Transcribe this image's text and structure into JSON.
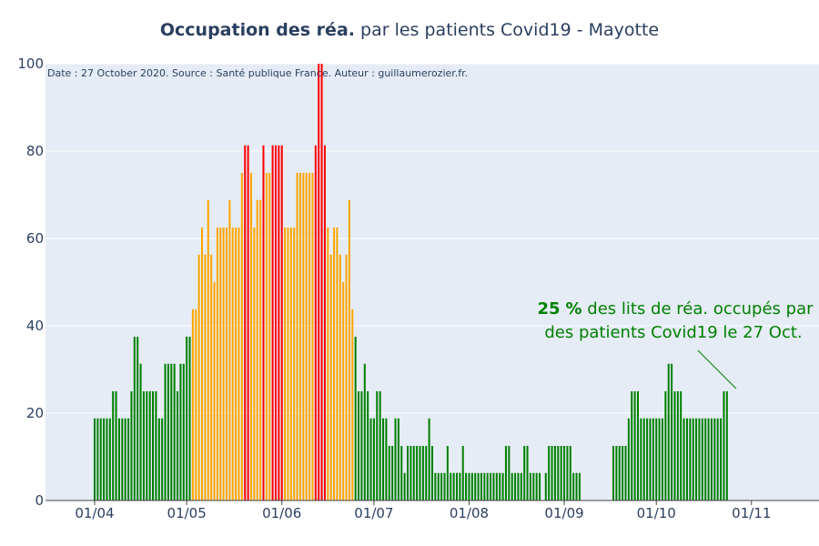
{
  "title": {
    "bold": "Occupation des réa.",
    "rest": " par les patients Covid19 - Mayotte"
  },
  "note": "Date : 27 October 2020. Source : Santé publique France. Auteur : guillaumerozier.fr.",
  "annotation": {
    "value": "25",
    "pct": "%",
    "line1_rest": " des lits de réa. occupés par",
    "line2": "des patients Covid19 le 27 Oct."
  },
  "colors": {
    "green": "#008000",
    "orange": "#FFA500",
    "red": "#FF0000",
    "plot_bg": "#E5ECF6",
    "grid": "#ffffff"
  },
  "chart_data": {
    "type": "bar",
    "x_tick_labels": [
      "01/04",
      "01/05",
      "01/06",
      "01/07",
      "01/08",
      "01/09",
      "01/10",
      "01/11"
    ],
    "x_tick_dates": [
      "2020-04-01",
      "2020-05-01",
      "2020-06-01",
      "2020-07-01",
      "2020-08-01",
      "2020-09-01",
      "2020-10-01",
      "2020-11-01"
    ],
    "x_range": [
      "2020-03-16",
      "2020-11-23"
    ],
    "ylim": [
      0,
      100
    ],
    "y_ticks": [
      0,
      20,
      40,
      60,
      80,
      100
    ],
    "grid": true,
    "thresholds": {
      "orange_at_or_above": 40,
      "red_at_or_above": 80
    },
    "first_date": "2020-04-01",
    "values": [
      18.8,
      18.8,
      18.8,
      18.8,
      18.8,
      18.8,
      25,
      25,
      18.8,
      18.8,
      18.8,
      18.8,
      25,
      37.5,
      37.5,
      31.3,
      25,
      25,
      25,
      25,
      25,
      18.8,
      18.8,
      31.3,
      31.3,
      31.3,
      31.3,
      25,
      31.3,
      31.3,
      37.5,
      37.5,
      43.8,
      43.8,
      56.3,
      62.5,
      56.3,
      68.8,
      56.3,
      50,
      62.5,
      62.5,
      62.5,
      62.5,
      68.8,
      62.5,
      62.5,
      62.5,
      75,
      81.3,
      81.3,
      75,
      62.5,
      68.8,
      68.8,
      81.3,
      75,
      75,
      81.3,
      81.3,
      81.3,
      81.3,
      62.5,
      62.5,
      62.5,
      62.5,
      75,
      75,
      75,
      75,
      75,
      75,
      81.3,
      100,
      100,
      81.3,
      62.5,
      56.3,
      62.5,
      62.5,
      56.3,
      50,
      56.3,
      68.8,
      43.8,
      37.5,
      25,
      25,
      31.3,
      25,
      18.8,
      18.8,
      25,
      25,
      18.8,
      18.8,
      12.5,
      12.5,
      18.8,
      18.8,
      12.5,
      6.3,
      12.5,
      12.5,
      12.5,
      12.5,
      12.5,
      12.5,
      12.5,
      18.8,
      12.5,
      6.3,
      6.3,
      6.3,
      6.3,
      12.5,
      6.3,
      6.3,
      6.3,
      6.3,
      12.5,
      6.3,
      6.3,
      6.3,
      6.3,
      6.3,
      6.3,
      6.3,
      6.3,
      6.3,
      6.3,
      6.3,
      6.3,
      6.3,
      12.5,
      12.5,
      6.3,
      6.3,
      6.3,
      6.3,
      12.5,
      12.5,
      6.3,
      6.3,
      6.3,
      6.3,
      0,
      6.3,
      12.5,
      12.5,
      12.5,
      12.5,
      12.5,
      12.5,
      12.5,
      12.5,
      6.3,
      6.3,
      6.3,
      0,
      0,
      0,
      0,
      0,
      0,
      0,
      0,
      0,
      0,
      12.5,
      12.5,
      12.5,
      12.5,
      12.5,
      18.8,
      25,
      25,
      25,
      18.8,
      18.8,
      18.8,
      18.8,
      18.8,
      18.8,
      18.8,
      18.8,
      25,
      31.3,
      31.3,
      25,
      25,
      25,
      18.8,
      18.8,
      18.8,
      18.8,
      18.8,
      18.8,
      18.8,
      18.8,
      18.8,
      18.8,
      18.8,
      18.8,
      18.8,
      25,
      25
    ],
    "last_value": 25,
    "last_date": "2020-10-27"
  }
}
